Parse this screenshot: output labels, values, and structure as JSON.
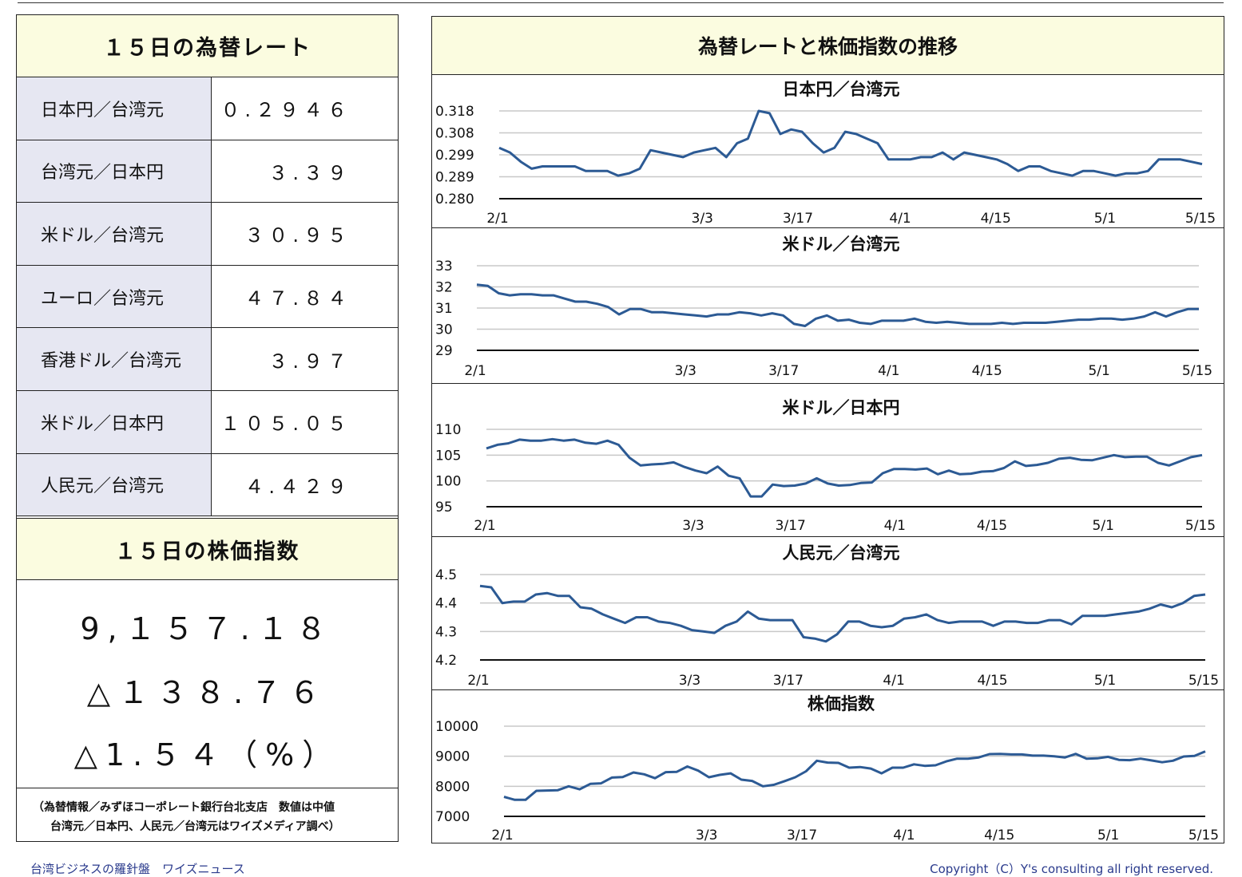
{
  "rates": {
    "title": "１５日の為替レート",
    "rows": [
      {
        "label": "日本円／台湾元",
        "value": "０.２９４６"
      },
      {
        "label": "台湾元／日本円",
        "value": "３.３９"
      },
      {
        "label": "米ドル／台湾元",
        "value": "３０.９５"
      },
      {
        "label": "ユーロ／台湾元",
        "value": "４７.８４"
      },
      {
        "label": "香港ドル／台湾元",
        "value": "３.９７"
      },
      {
        "label": "米ドル／日本円",
        "value": "１０５.０５"
      },
      {
        "label": "人民元／台湾元",
        "value": "４.４２９"
      }
    ]
  },
  "stock": {
    "title": "１５日の株価指数",
    "index": "9,１５７.１８",
    "change": "△１３８.７６",
    "change_pct": "△1.５４（%）"
  },
  "source": {
    "line1": "（為替情報／みずほコーポレート銀行台北支店　数値は中値",
    "line2": "台湾元／日本円、人民元／台湾元はワイズメディア調べ）"
  },
  "right_title": "為替レートと株価指数の推移",
  "chart_data": [
    {
      "type": "line",
      "title": "日本円／台湾元",
      "color": "#2c5a94",
      "yticks": [
        "0.318",
        "0.308",
        "0.299",
        "0.289",
        "0.280"
      ],
      "ylim": [
        0.28,
        0.318
      ],
      "xticks": [
        "2/1",
        "3/3",
        "3/17",
        "4/1",
        "4/15",
        "5/1",
        "5/15"
      ],
      "values": [
        0.302,
        0.3,
        0.296,
        0.293,
        0.294,
        0.294,
        0.294,
        0.294,
        0.292,
        0.292,
        0.292,
        0.29,
        0.291,
        0.293,
        0.301,
        0.3,
        0.299,
        0.298,
        0.3,
        0.301,
        0.302,
        0.298,
        0.304,
        0.306,
        0.318,
        0.317,
        0.308,
        0.31,
        0.309,
        0.304,
        0.3,
        0.302,
        0.309,
        0.308,
        0.306,
        0.304,
        0.297,
        0.297,
        0.297,
        0.298,
        0.298,
        0.3,
        0.297,
        0.3,
        0.299,
        0.298,
        0.297,
        0.295,
        0.292,
        0.294,
        0.294,
        0.292,
        0.291,
        0.29,
        0.292,
        0.292,
        0.291,
        0.29,
        0.291,
        0.291,
        0.292,
        0.297,
        0.297,
        0.297,
        0.296,
        0.295
      ]
    },
    {
      "type": "line",
      "title": "米ドル／台湾元",
      "color": "#2c5a94",
      "yticks": [
        "33",
        "32",
        "31",
        "30",
        "29"
      ],
      "ylim": [
        29,
        33
      ],
      "xticks": [
        "2/1",
        "3/3",
        "3/17",
        "4/1",
        "4/15",
        "5/1",
        "5/15"
      ],
      "values": [
        32.1,
        32.05,
        31.7,
        31.6,
        31.65,
        31.65,
        31.6,
        31.6,
        31.45,
        31.3,
        31.3,
        31.2,
        31.05,
        30.7,
        30.95,
        30.95,
        30.8,
        30.8,
        30.75,
        30.7,
        30.65,
        30.6,
        30.7,
        30.7,
        30.8,
        30.75,
        30.65,
        30.75,
        30.65,
        30.25,
        30.15,
        30.5,
        30.65,
        30.4,
        30.45,
        30.3,
        30.25,
        30.4,
        30.4,
        30.4,
        30.5,
        30.35,
        30.3,
        30.35,
        30.3,
        30.25,
        30.25,
        30.25,
        30.3,
        30.25,
        30.3,
        30.3,
        30.3,
        30.35,
        30.4,
        30.45,
        30.45,
        30.5,
        30.5,
        30.45,
        30.5,
        30.6,
        30.8,
        30.6,
        30.8,
        30.95,
        30.95
      ]
    },
    {
      "type": "line",
      "title": "米ドル／日本円",
      "color": "#2c5a94",
      "yticks": [
        "110",
        "105",
        "100",
        "95"
      ],
      "ylim": [
        95,
        110
      ],
      "xticks": [
        "2/1",
        "3/3",
        "3/17",
        "4/1",
        "4/15",
        "5/1",
        "5/15"
      ],
      "values": [
        106.3,
        107.0,
        107.3,
        108.0,
        107.8,
        107.8,
        108.1,
        107.8,
        108.0,
        107.4,
        107.2,
        107.8,
        107.0,
        104.5,
        103.0,
        103.2,
        103.3,
        103.6,
        102.7,
        102.0,
        101.5,
        102.8,
        101.0,
        100.5,
        97.0,
        97.0,
        99.3,
        99.0,
        99.1,
        99.5,
        100.5,
        99.5,
        99.1,
        99.2,
        99.6,
        99.7,
        101.5,
        102.3,
        102.3,
        102.2,
        102.4,
        101.3,
        102.0,
        101.3,
        101.4,
        101.8,
        101.9,
        102.5,
        103.8,
        102.9,
        103.1,
        103.5,
        104.3,
        104.5,
        104.1,
        104.0,
        104.5,
        105.0,
        104.6,
        104.7,
        104.7,
        103.5,
        103.0,
        103.8,
        104.6,
        105.0
      ]
    },
    {
      "type": "line",
      "title": "人民元／台湾元",
      "color": "#2c5a94",
      "yticks": [
        "4.5",
        "4.4",
        "4.3",
        "4.2"
      ],
      "ylim": [
        4.2,
        4.5
      ],
      "xticks": [
        "2/1",
        "3/3",
        "3/17",
        "4/1",
        "4/15",
        "5/1",
        "5/15"
      ],
      "values": [
        4.46,
        4.455,
        4.4,
        4.405,
        4.405,
        4.43,
        4.435,
        4.425,
        4.425,
        4.385,
        4.38,
        4.36,
        4.345,
        4.33,
        4.35,
        4.35,
        4.335,
        4.33,
        4.32,
        4.305,
        4.3,
        4.295,
        4.32,
        4.335,
        4.37,
        4.345,
        4.34,
        4.34,
        4.34,
        4.28,
        4.275,
        4.265,
        4.29,
        4.335,
        4.335,
        4.32,
        4.315,
        4.32,
        4.345,
        4.35,
        4.36,
        4.34,
        4.33,
        4.335,
        4.335,
        4.335,
        4.32,
        4.335,
        4.335,
        4.33,
        4.33,
        4.34,
        4.34,
        4.325,
        4.355,
        4.355,
        4.355,
        4.36,
        4.365,
        4.37,
        4.38,
        4.395,
        4.385,
        4.4,
        4.425,
        4.43
      ]
    },
    {
      "type": "line",
      "title": "株価指数",
      "color": "#2c5a94",
      "yticks": [
        "10000",
        "9000",
        "8000",
        "7000"
      ],
      "ylim": [
        7000,
        10000
      ],
      "xticks": [
        "2/1",
        "3/3",
        "3/17",
        "4/1",
        "4/15",
        "5/1",
        "5/15"
      ],
      "values": [
        7650,
        7550,
        7550,
        7850,
        7860,
        7870,
        8000,
        7900,
        8080,
        8100,
        8290,
        8310,
        8460,
        8400,
        8270,
        8470,
        8480,
        8660,
        8520,
        8300,
        8380,
        8430,
        8220,
        8180,
        8000,
        8050,
        8170,
        8300,
        8500,
        8850,
        8790,
        8780,
        8620,
        8640,
        8590,
        8430,
        8620,
        8620,
        8730,
        8680,
        8700,
        8830,
        8920,
        8920,
        8960,
        9070,
        9080,
        9060,
        9060,
        9020,
        9020,
        9000,
        8960,
        9080,
        8920,
        8930,
        8980,
        8880,
        8870,
        8920,
        8860,
        8800,
        8850,
        8990,
        9010,
        9160
      ]
    }
  ],
  "footer": {
    "left": "台湾ビジネスの羅針盤　ワイズニュース",
    "right": "Copyright（C）Y's consulting all right reserved."
  }
}
